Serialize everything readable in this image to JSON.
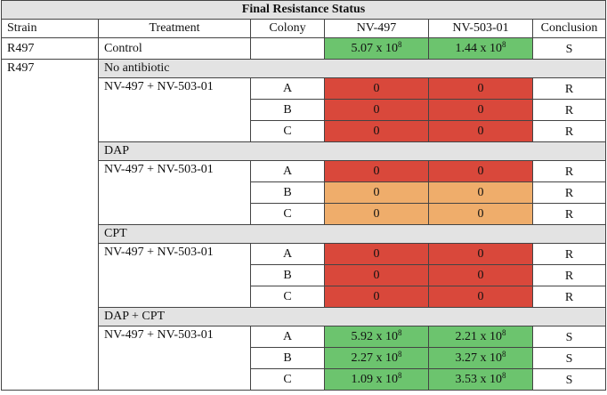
{
  "table": {
    "title": "Final Resistance Status",
    "headers": {
      "strain": "Strain",
      "treatment": "Treatment",
      "colony": "Colony",
      "nv497": "NV-497",
      "nv50301": "NV-503-01",
      "conclusion": "Conclusion"
    },
    "control": {
      "strain": "R497",
      "treatment": "Control",
      "nv497_mantissa": "5.07 x 10",
      "nv497_exp": "8",
      "nv50301_mantissa": "1.44 x 10",
      "nv50301_exp": "8",
      "conclusion": "S",
      "color": "#6cc46e"
    },
    "strain_main": "R497",
    "groups": [
      {
        "section": "No antibiotic",
        "treatment": "NV-497 + NV-503-01",
        "rows": [
          {
            "colony": "A",
            "nv497": "0",
            "nv50301": "0",
            "conclusion": "R",
            "color": "#d9483b"
          },
          {
            "colony": "B",
            "nv497": "0",
            "nv50301": "0",
            "conclusion": "R",
            "color": "#d9483b"
          },
          {
            "colony": "C",
            "nv497": "0",
            "nv50301": "0",
            "conclusion": "R",
            "color": "#d9483b"
          }
        ]
      },
      {
        "section": "DAP",
        "treatment": "NV-497 + NV-503-01",
        "rows": [
          {
            "colony": "A",
            "nv497": "0",
            "nv50301": "0",
            "conclusion": "R",
            "color": "#d9483b"
          },
          {
            "colony": "B",
            "nv497": "0",
            "nv50301": "0",
            "conclusion": "R",
            "color": "#efad6b"
          },
          {
            "colony": "C",
            "nv497": "0",
            "nv50301": "0",
            "conclusion": "R",
            "color": "#efad6b"
          }
        ]
      },
      {
        "section": "CPT",
        "treatment": "NV-497 + NV-503-01",
        "rows": [
          {
            "colony": "A",
            "nv497": "0",
            "nv50301": "0",
            "conclusion": "R",
            "color": "#d9483b"
          },
          {
            "colony": "B",
            "nv497": "0",
            "nv50301": "0",
            "conclusion": "R",
            "color": "#d9483b"
          },
          {
            "colony": "C",
            "nv497": "0",
            "nv50301": "0",
            "conclusion": "R",
            "color": "#d9483b"
          }
        ]
      },
      {
        "section": "DAP + CPT",
        "treatment": "NV-497 + NV-503-01",
        "rows": [
          {
            "colony": "A",
            "nv497_mantissa": "5.92 x 10",
            "nv497_exp": "8",
            "nv50301_mantissa": "2.21 x 10",
            "nv50301_exp": "8",
            "conclusion": "S",
            "color": "#6cc46e"
          },
          {
            "colony": "B",
            "nv497_mantissa": "2.27 x 10",
            "nv497_exp": "8",
            "nv50301_mantissa": "3.27 x 10",
            "nv50301_exp": "8",
            "conclusion": "S",
            "color": "#6cc46e"
          },
          {
            "colony": "C",
            "nv497_mantissa": "1.09 x 10",
            "nv497_exp": "8",
            "nv50301_mantissa": "3.53 x 10",
            "nv50301_exp": "8",
            "conclusion": "S",
            "color": "#6cc46e"
          }
        ]
      }
    ]
  }
}
